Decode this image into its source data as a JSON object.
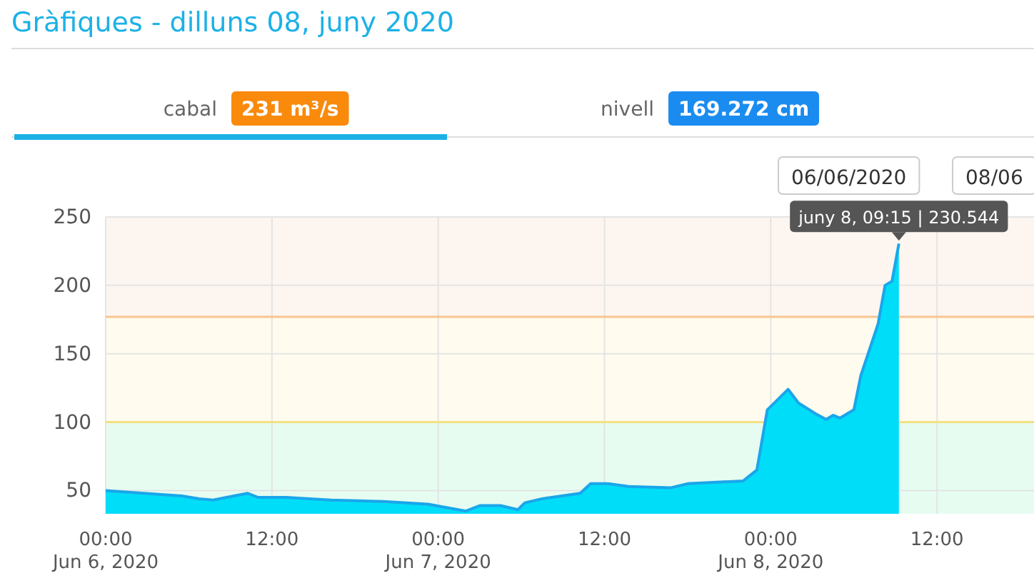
{
  "chart_data": {
    "type": "area",
    "title": "Gràfiques - dilluns 08, juny 2020",
    "annotations": [
      "cabal",
      "231 m³/s",
      "nivell",
      "169.272 cm",
      "06/06/2020",
      "08/06",
      {
        "text": "juny 8, 09:15 | 230.544",
        "x": "2020-06-08T09:15",
        "y": 230.544
      }
    ],
    "x": [
      "2020-06-06T00:00",
      "2020-06-06T05:30",
      "2020-06-06T06:45",
      "2020-06-06T07:45",
      "2020-06-06T09:15",
      "2020-06-06T10:15",
      "2020-06-06T11:00",
      "2020-06-06T13:00",
      "2020-06-06T16:15",
      "2020-06-06T20:00",
      "2020-06-06T23:15",
      "2020-06-07T02:00",
      "2020-06-07T03:00",
      "2020-06-07T04:30",
      "2020-06-07T05:45",
      "2020-06-07T06:15",
      "2020-06-07T07:30",
      "2020-06-07T10:15",
      "2020-06-07T11:00",
      "2020-06-07T12:15",
      "2020-06-07T13:45",
      "2020-06-07T16:45",
      "2020-06-07T18:00",
      "2020-06-07T22:00",
      "2020-06-07T23:00",
      "2020-06-07T23:45",
      "2020-06-08T01:15",
      "2020-06-08T02:00",
      "2020-06-08T03:15",
      "2020-06-08T04:00",
      "2020-06-08T04:30",
      "2020-06-08T05:00",
      "2020-06-08T06:00",
      "2020-06-08T06:30",
      "2020-06-08T07:45",
      "2020-06-08T08:15",
      "2020-06-08T08:45",
      "2020-06-08T09:15"
    ],
    "series": [
      {
        "color": "#00ddf8",
        "values": [
          50,
          46,
          44,
          43,
          46,
          48,
          45,
          45,
          43,
          42,
          40,
          35,
          39,
          39,
          36,
          41,
          44,
          48,
          55,
          55,
          53,
          52,
          55,
          57,
          65,
          109,
          124,
          114,
          106,
          102,
          105,
          103,
          109,
          134,
          172,
          200,
          203,
          230.544
        ]
      }
    ],
    "xlim": [
      "2020-06-06T00:00",
      "2020-06-08T19:00"
    ],
    "xticks": [
      {
        "value": "2020-06-06T00:00",
        "label": "00:00\nJun 6, 2020"
      },
      {
        "value": "2020-06-06T12:00",
        "label": "12:00"
      },
      {
        "value": "2020-06-07T00:00",
        "label": "00:00\nJun 7, 2020"
      },
      {
        "value": "2020-06-07T12:00",
        "label": "12:00"
      },
      {
        "value": "2020-06-08T00:00",
        "label": "00:00\nJun 8, 2020"
      },
      {
        "value": "2020-06-08T12:00",
        "label": "12:00"
      }
    ],
    "ylim": [
      33,
      250
    ],
    "yticks": [
      50,
      100,
      150,
      200,
      250
    ],
    "grid": true,
    "bands": [
      {
        "axis": "y",
        "from": 33,
        "to": 100,
        "color": "#e6fcf1"
      },
      {
        "axis": "y",
        "from": 100,
        "to": 177,
        "color": "#fffbee"
      },
      {
        "axis": "y",
        "from": 177,
        "to": 250,
        "color": "#fdf6f0"
      }
    ],
    "ref_lines": [
      {
        "axis": "y",
        "value": 100,
        "color": "#f3e184"
      },
      {
        "axis": "y",
        "value": 177,
        "color": "#f8c490"
      }
    ]
  }
}
